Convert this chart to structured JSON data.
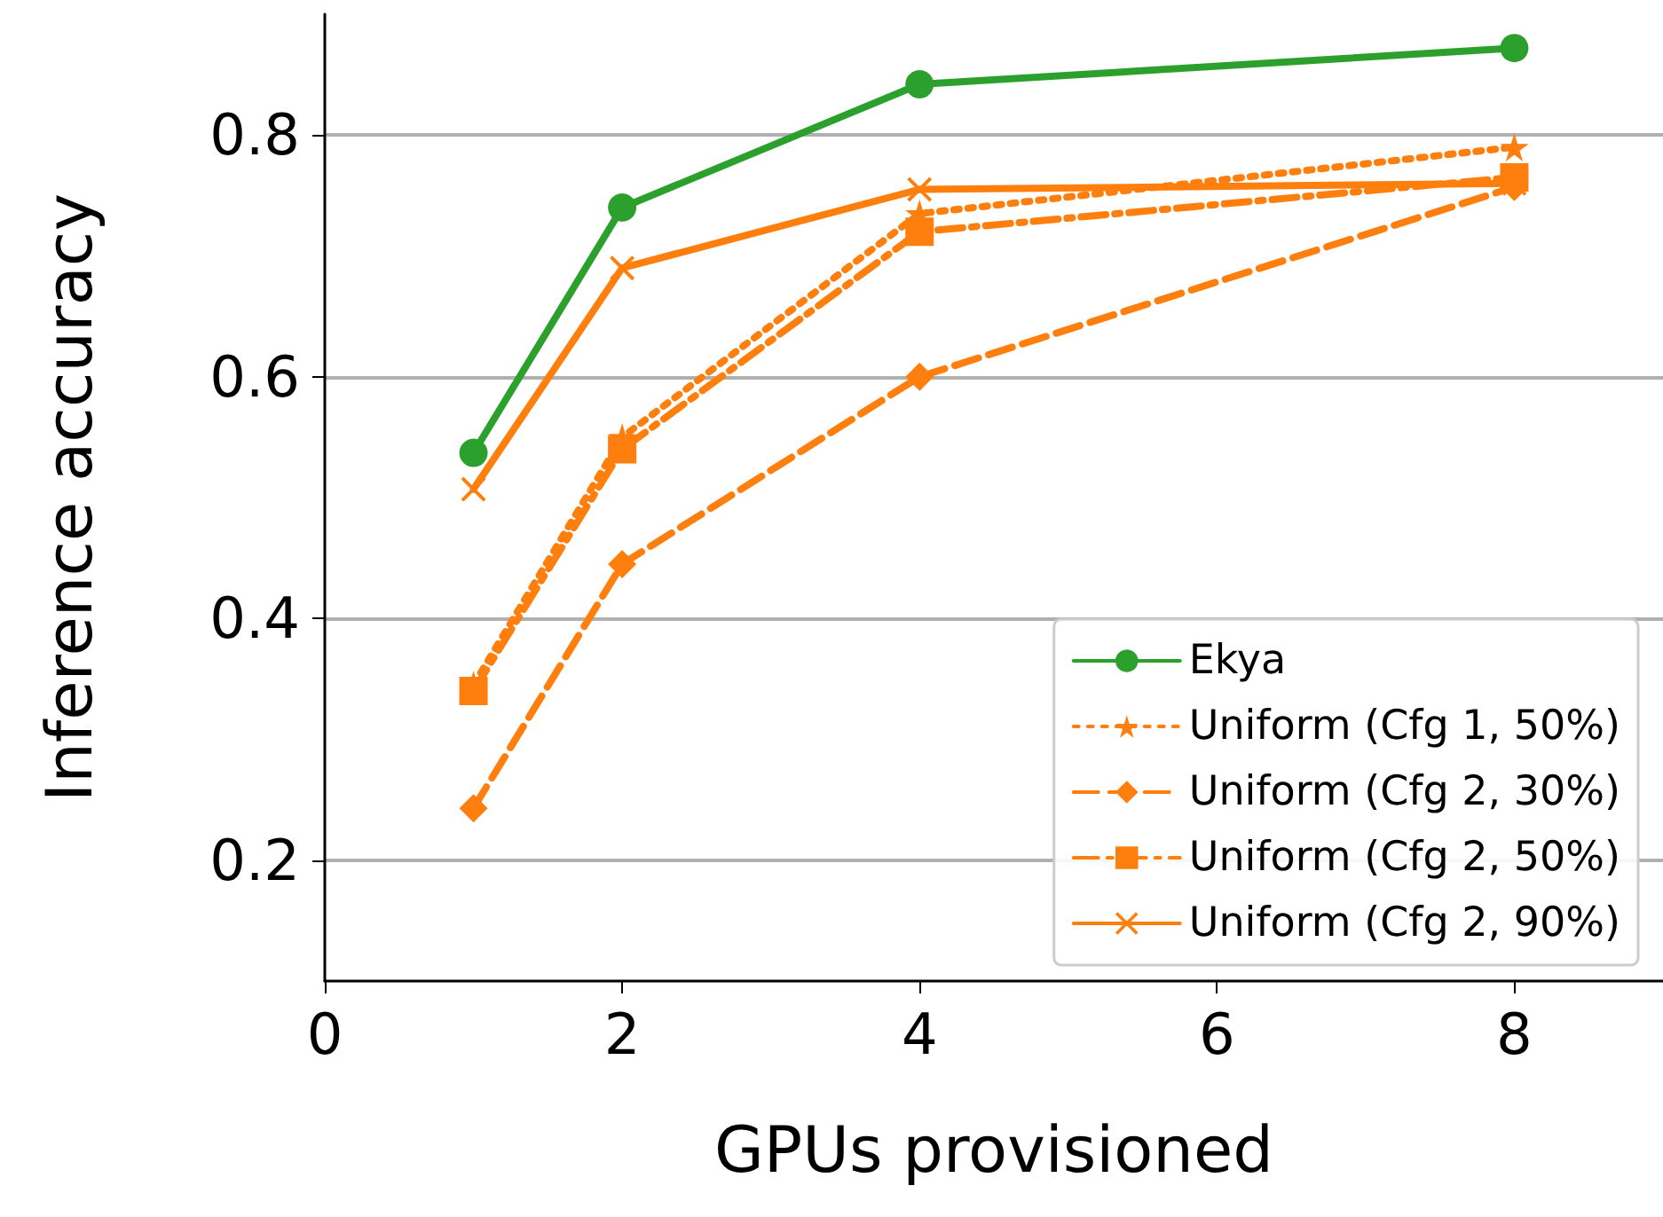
{
  "chart_data": {
    "type": "line",
    "xlabel": "GPUs provisioned",
    "ylabel": "Inference accuracy",
    "x": [
      1,
      2,
      4,
      8
    ],
    "xlim": [
      0,
      9
    ],
    "xticks": [
      0,
      2,
      4,
      6,
      8
    ],
    "ylim": [
      0.1,
      0.9
    ],
    "yticks": [
      0.2,
      0.4,
      0.6,
      0.8
    ],
    "grid": "y",
    "legend": "bottom right",
    "series": [
      {
        "name": "Ekya",
        "color": "#2ca02c",
        "values": [
          0.537,
          0.74,
          0.842,
          0.872
        ],
        "marker": "circle",
        "line_style": "solid"
      },
      {
        "name": "Uniform (Cfg 1, 50%)",
        "color": "#ff7f0e",
        "values": [
          0.345,
          0.55,
          0.735,
          0.79
        ],
        "marker": "star",
        "line_style": "dotted"
      },
      {
        "name": "Uniform (Cfg 2, 30%)",
        "color": "#ff7f0e",
        "values": [
          0.243,
          0.445,
          0.6,
          0.757
        ],
        "marker": "diamond",
        "line_style": "dashed"
      },
      {
        "name": "Uniform (Cfg 2, 50%)",
        "color": "#ff7f0e",
        "values": [
          0.34,
          0.54,
          0.72,
          0.765
        ],
        "marker": "square",
        "line_style": "dashdot"
      },
      {
        "name": "Uniform (Cfg 2, 90%)",
        "color": "#ff7f0e",
        "values": [
          0.507,
          0.69,
          0.755,
          0.76
        ],
        "marker": "cross",
        "line_style": "solid"
      }
    ]
  }
}
